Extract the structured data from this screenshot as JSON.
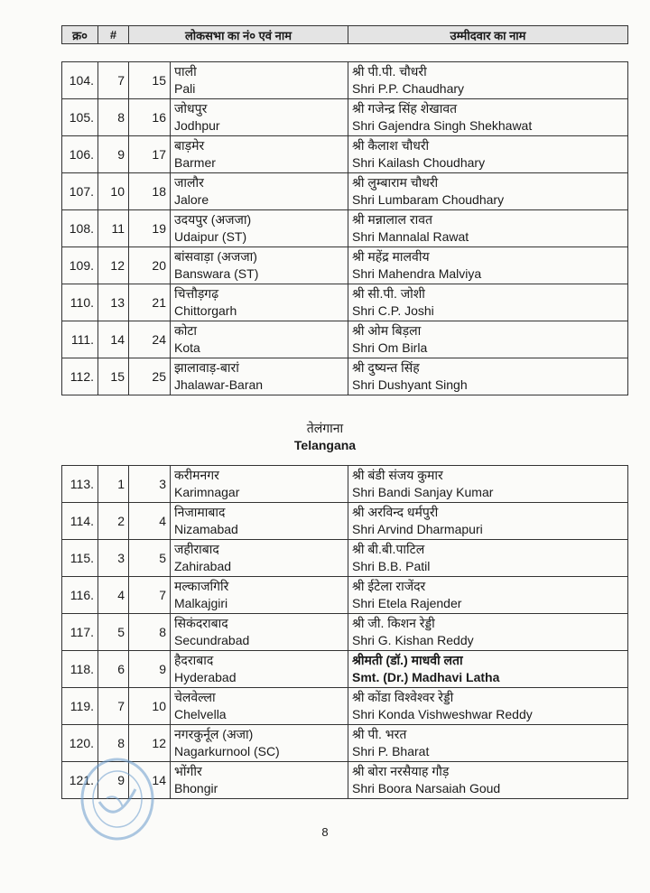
{
  "header": {
    "serial": "क्र०",
    "hash": "#",
    "constituency": "लोकसभा का नं० एवं नाम",
    "candidate": "उम्मीदवार का नाम"
  },
  "rajasthan_rows": [
    {
      "sno": "104.",
      "idx": "7",
      "seat": "15",
      "const_hi": "पाली",
      "const_en": "Pali",
      "cand_hi": "श्री पी.पी. चौधरी",
      "cand_en": "Shri P.P. Chaudhary"
    },
    {
      "sno": "105.",
      "idx": "8",
      "seat": "16",
      "const_hi": "जोधपुर",
      "const_en": "Jodhpur",
      "cand_hi": "श्री गजेन्द्र सिंह शेखावत",
      "cand_en": "Shri Gajendra Singh Shekhawat"
    },
    {
      "sno": "106.",
      "idx": "9",
      "seat": "17",
      "const_hi": "बाड़मेर",
      "const_en": "Barmer",
      "cand_hi": "श्री कैलाश चौधरी",
      "cand_en": "Shri Kailash Choudhary"
    },
    {
      "sno": "107.",
      "idx": "10",
      "seat": "18",
      "const_hi": "जालौर",
      "const_en": "Jalore",
      "cand_hi": "श्री लुम्बाराम चौधरी",
      "cand_en": "Shri Lumbaram Choudhary"
    },
    {
      "sno": "108.",
      "idx": "11",
      "seat": "19",
      "const_hi": "उदयपुर (अजजा)",
      "const_en": "Udaipur (ST)",
      "cand_hi": "श्री मन्नालाल रावत",
      "cand_en": "Shri Mannalal Rawat"
    },
    {
      "sno": "109.",
      "idx": "12",
      "seat": "20",
      "const_hi": "बांसवाड़ा (अजजा)",
      "const_en": "Banswara (ST)",
      "cand_hi": "श्री महेंद्र मालवीय",
      "cand_en": "Shri Mahendra Malviya"
    },
    {
      "sno": "110.",
      "idx": "13",
      "seat": "21",
      "const_hi": "चित्तौड़गढ़",
      "const_en": "Chittorgarh",
      "cand_hi": "श्री सी.पी. जोशी",
      "cand_en": "Shri C.P. Joshi"
    },
    {
      "sno": "111.",
      "idx": "14",
      "seat": "24",
      "const_hi": "कोटा",
      "const_en": "Kota",
      "cand_hi": "श्री ओम बिड़ला",
      "cand_en": "Shri Om Birla"
    },
    {
      "sno": "112.",
      "idx": "15",
      "seat": "25",
      "const_hi": "झालावाड़-बारां",
      "const_en": "Jhalawar-Baran",
      "cand_hi": "श्री दुष्यन्त सिंह",
      "cand_en": "Shri Dushyant Singh"
    }
  ],
  "telangana": {
    "title_hi": "तेलंगाना",
    "title_en": "Telangana"
  },
  "telangana_rows": [
    {
      "sno": "113.",
      "idx": "1",
      "seat": "3",
      "const_hi": "करीमनगर",
      "const_en": "Karimnagar",
      "cand_hi": "श्री बंडी संजय कुमार",
      "cand_en": "Shri Bandi Sanjay Kumar"
    },
    {
      "sno": "114.",
      "idx": "2",
      "seat": "4",
      "const_hi": "निजामाबाद",
      "const_en": "Nizamabad",
      "cand_hi": "श्री अरविन्द धर्मपुरी",
      "cand_en": "Shri Arvind Dharmapuri"
    },
    {
      "sno": "115.",
      "idx": "3",
      "seat": "5",
      "const_hi": "जहीराबाद",
      "const_en": "Zahirabad",
      "cand_hi": "श्री बी.बी.पाटिल",
      "cand_en": "Shri B.B. Patil"
    },
    {
      "sno": "116.",
      "idx": "4",
      "seat": "7",
      "const_hi": "मल्काजगिरि",
      "const_en": "Malkajgiri",
      "cand_hi": "श्री ईटेला राजेंदर",
      "cand_en": "Shri Etela Rajender"
    },
    {
      "sno": "117.",
      "idx": "5",
      "seat": "8",
      "const_hi": "सिकंदराबाद",
      "const_en": "Secundrabad",
      "cand_hi": "श्री जी. किशन रेड्डी",
      "cand_en": "Shri G. Kishan Reddy"
    },
    {
      "sno": "118.",
      "idx": "6",
      "seat": "9",
      "const_hi": "हैदराबाद",
      "const_en": "Hyderabad",
      "cand_hi": "श्रीमती (डॉ.) माधवी लता",
      "cand_en": "Smt. (Dr.) Madhavi Latha",
      "bold": true
    },
    {
      "sno": "119.",
      "idx": "7",
      "seat": "10",
      "const_hi": "चेलवेल्ला",
      "const_en": "Chelvella",
      "cand_hi": "श्री कोंडा विश्वेश्वर रेड्डी",
      "cand_en": "Shri Konda Vishweshwar Reddy"
    },
    {
      "sno": "120.",
      "idx": "8",
      "seat": "12",
      "const_hi": "नगरकुर्नूल (अजा)",
      "const_en": "Nagarkurnool (SC)",
      "cand_hi": "श्री पी. भरत",
      "cand_en": "Shri P. Bharat"
    },
    {
      "sno": "121.",
      "idx": "9",
      "seat": "14",
      "const_hi": "भोंगीर",
      "const_en": "Bhongir",
      "cand_hi": "श्री बोरा नरसैयाह गौड़",
      "cand_en": "Shri Boora Narsaiah Goud"
    }
  ],
  "page_number": "8",
  "colors": {
    "stamp": "#6a9ccc",
    "header_bg": "#e4e4e4"
  }
}
